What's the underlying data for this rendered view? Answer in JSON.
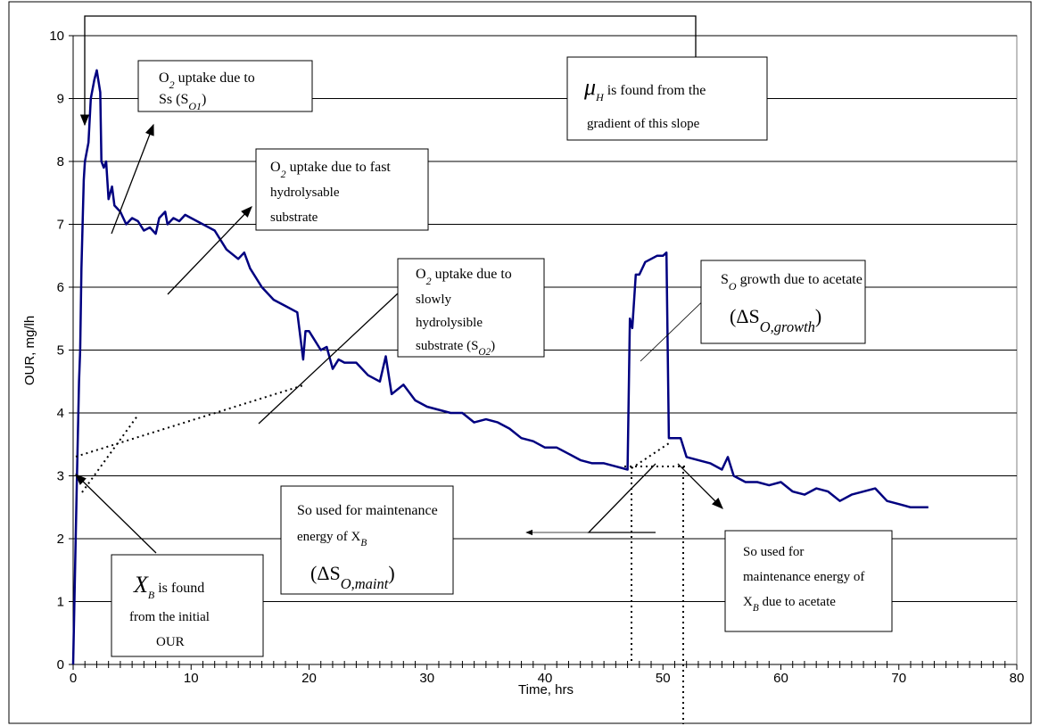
{
  "chart_data": {
    "type": "line",
    "color": "#000080",
    "ylabel": "OUR, mg/lh",
    "xlabel": "Time, hrs",
    "xlim": [
      0,
      80
    ],
    "ylim": [
      0,
      10
    ],
    "xticks": [
      0,
      10,
      20,
      30,
      40,
      50,
      60,
      70,
      80
    ],
    "yticks": [
      0,
      1,
      2,
      3,
      4,
      5,
      6,
      7,
      8,
      9,
      10
    ],
    "grid": true,
    "x": [
      0,
      0.3,
      0.5,
      0.6,
      0.7,
      0.8,
      0.9,
      1.0,
      1.3,
      1.5,
      1.8,
      2.0,
      2.3,
      2.4,
      2.6,
      2.8,
      3.0,
      3.3,
      3.5,
      4.0,
      4.5,
      5,
      5.5,
      6,
      6.5,
      7,
      7.3,
      7.8,
      8,
      8.5,
      9,
      9.5,
      10,
      11,
      12,
      13,
      14,
      14.5,
      15,
      16,
      17,
      18,
      19,
      19.5,
      19.7,
      20,
      21,
      21.5,
      22,
      22.5,
      23,
      24,
      25,
      26,
      26.5,
      27,
      28,
      29,
      30,
      31,
      32,
      33,
      34,
      35,
      36,
      37,
      38,
      39,
      40,
      41,
      42,
      43,
      44,
      45,
      46,
      47,
      47.2,
      47.4,
      47.7,
      48,
      48.5,
      49,
      49.5,
      50,
      50.3,
      50.5,
      51,
      51.5,
      52,
      53,
      54,
      55,
      55.5,
      56,
      57,
      58,
      59,
      60,
      61,
      62,
      63,
      64,
      65,
      66,
      67,
      68,
      69,
      70,
      71,
      72,
      72.5
    ],
    "values": [
      0,
      2.8,
      4.5,
      5.0,
      6.3,
      7.0,
      7.7,
      8.0,
      8.3,
      9.0,
      9.3,
      9.45,
      9.1,
      8.0,
      7.9,
      8.0,
      7.4,
      7.6,
      7.3,
      7.2,
      7.0,
      7.1,
      7.05,
      6.9,
      6.95,
      6.85,
      7.1,
      7.2,
      7.0,
      7.1,
      7.05,
      7.15,
      7.1,
      7.0,
      6.9,
      6.6,
      6.45,
      6.55,
      6.3,
      6.0,
      5.8,
      5.7,
      5.6,
      4.85,
      5.3,
      5.3,
      5.0,
      5.05,
      4.7,
      4.85,
      4.8,
      4.8,
      4.6,
      4.5,
      4.9,
      4.3,
      4.45,
      4.2,
      4.1,
      4.05,
      4.0,
      4.0,
      3.85,
      3.9,
      3.85,
      3.75,
      3.6,
      3.55,
      3.45,
      3.45,
      3.35,
      3.25,
      3.2,
      3.2,
      3.15,
      3.1,
      5.5,
      5.35,
      6.2,
      6.2,
      6.4,
      6.45,
      6.5,
      6.5,
      6.55,
      3.6,
      3.6,
      3.6,
      3.3,
      3.25,
      3.2,
      3.1,
      3.3,
      3.0,
      2.9,
      2.9,
      2.85,
      2.9,
      2.75,
      2.7,
      2.8,
      2.75,
      2.6,
      2.7,
      2.75,
      2.8,
      2.6,
      2.55,
      2.5,
      2.5,
      2.5
    ],
    "annotations": [
      {
        "lines": [
          [
            "O",
            {
              "sub": "2"
            },
            " uptake due to"
          ],
          [
            "Ss (S",
            {
              "sub": "O1"
            },
            ")"
          ]
        ]
      },
      {
        "lines": [
          [
            "O",
            {
              "sub": "2"
            },
            " uptake due to fast"
          ],
          [
            "hydrolysable"
          ],
          [
            "substrate"
          ]
        ]
      },
      {
        "lines": [
          [
            "O",
            {
              "sub": "2"
            },
            " uptake due to"
          ],
          [
            "slowly"
          ],
          [
            "hydrolysible"
          ],
          [
            "substrate (S",
            {
              "sub": "O2"
            },
            ")"
          ]
        ]
      },
      {
        "lines": [
          [
            {
              "math": "μ"
            },
            {
              "sub": "H"
            },
            " is found from the"
          ],
          [
            "gradient of this slope"
          ]
        ]
      },
      {
        "lines": [
          [
            "S",
            {
              "sub": "O"
            },
            " growth due to acetate"
          ],
          [
            "(ΔS",
            {
              "sub": "O,growth"
            },
            ")"
          ]
        ]
      },
      {
        "lines": [
          [
            "So used for maintenance"
          ],
          [
            "energy of X",
            {
              "sub": "B"
            }
          ],
          [
            "(ΔS",
            {
              "sub": "O,maint"
            },
            ")"
          ]
        ]
      },
      {
        "lines": [
          [
            "So used for"
          ],
          [
            "maintenance energy of"
          ],
          [
            "X",
            {
              "sub": "B"
            },
            " due to acetate"
          ]
        ]
      },
      {
        "lines": [
          [
            {
              "math": "X"
            },
            {
              "sub": "B"
            },
            " is found"
          ],
          [
            "from the initial"
          ],
          [
            "OUR"
          ]
        ]
      }
    ]
  }
}
